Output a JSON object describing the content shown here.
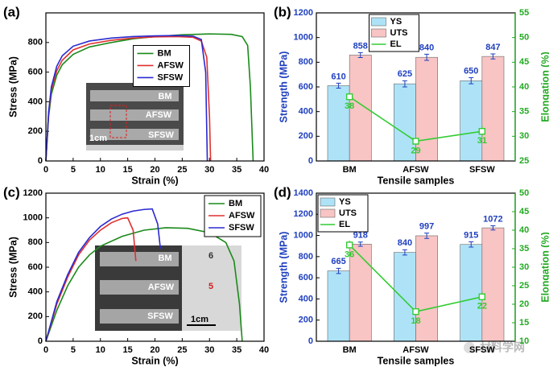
{
  "chart_data": [
    {
      "type": "line",
      "label": "(a)",
      "xlabel": "Strain (%)",
      "ylabel": "Stress (MPa)",
      "xlim": [
        0,
        40
      ],
      "xticks": [
        0,
        5,
        10,
        15,
        20,
        25,
        30,
        35,
        40
      ],
      "ylim": [
        0,
        1000
      ],
      "yticks": [
        0,
        200,
        400,
        600,
        800
      ],
      "legend": "center",
      "series": [
        {
          "name": "BM",
          "color": "#1a8a1a",
          "x": [
            0,
            0.5,
            1,
            2,
            3,
            5,
            8,
            12,
            16,
            20,
            25,
            30,
            34,
            36,
            37,
            37.5,
            38
          ],
          "values": [
            0,
            300,
            450,
            580,
            650,
            720,
            770,
            800,
            825,
            840,
            852,
            858,
            855,
            840,
            780,
            500,
            0
          ]
        },
        {
          "name": "AFSW",
          "color": "#e03030",
          "x": [
            0,
            0.5,
            1,
            2,
            3,
            5,
            8,
            12,
            16,
            20,
            24,
            27,
            28.5,
            29.5,
            30,
            30.2
          ],
          "values": [
            0,
            320,
            480,
            610,
            680,
            750,
            790,
            815,
            830,
            838,
            840,
            835,
            810,
            700,
            300,
            0
          ]
        },
        {
          "name": "SFSW",
          "color": "#2a2ad0",
          "x": [
            0,
            0.5,
            1,
            2,
            3,
            5,
            8,
            12,
            16,
            20,
            24,
            27,
            28.5,
            29.3,
            29.6
          ],
          "values": [
            0,
            330,
            500,
            640,
            710,
            775,
            810,
            830,
            840,
            845,
            847,
            843,
            820,
            600,
            0
          ]
        }
      ],
      "inset_labels": [
        "BM",
        "AFSW",
        "SFSW",
        "1cm"
      ]
    },
    {
      "type": "bar",
      "label": "(b)",
      "xlabel": "Tensile samples",
      "ylabel": "Strength (MPa)",
      "y2label": "Elongation (%)",
      "categories": [
        "BM",
        "AFSW",
        "SFSW"
      ],
      "ylim": [
        0,
        1200
      ],
      "yticks": [
        0,
        200,
        400,
        600,
        800,
        1000,
        1200
      ],
      "y2lim": [
        25,
        55
      ],
      "y2ticks": [
        25,
        30,
        35,
        40,
        45,
        50,
        55
      ],
      "legend": "upper center",
      "ycolor": "#1f3fbf",
      "y2color": "#22aa22",
      "series": [
        {
          "name": "YS",
          "color": "#aee3f7",
          "values": [
            610,
            625,
            650
          ],
          "errors": [
            20,
            25,
            25
          ]
        },
        {
          "name": "UTS",
          "color": "#f8c4c4",
          "values": [
            858,
            840,
            847
          ],
          "errors": [
            20,
            25,
            20
          ]
        },
        {
          "name": "EL",
          "color": "#33cc33",
          "axis": "y2",
          "values": [
            38,
            29,
            31
          ],
          "errors": [
            1,
            1,
            1.2
          ]
        }
      ]
    },
    {
      "type": "line",
      "label": "(c)",
      "xlabel": "Strain (%)",
      "ylabel": "Stress (MPa)",
      "xlim": [
        0,
        40
      ],
      "xticks": [
        0,
        5,
        10,
        15,
        20,
        25,
        30,
        35,
        40
      ],
      "ylim": [
        0,
        1200
      ],
      "yticks": [
        0,
        200,
        400,
        600,
        800,
        1000,
        1200
      ],
      "legend": "upper right",
      "series": [
        {
          "name": "BM",
          "color": "#1a8a1a",
          "x": [
            0,
            2,
            4,
            6,
            8,
            10,
            14,
            18,
            22,
            26,
            30,
            33,
            34.5,
            35.5,
            36
          ],
          "values": [
            0,
            250,
            450,
            600,
            700,
            770,
            850,
            900,
            920,
            915,
            880,
            800,
            650,
            300,
            0
          ]
        },
        {
          "name": "AFSW",
          "color": "#e03030",
          "x": [
            0,
            2,
            4,
            6,
            8,
            10,
            12,
            14,
            15,
            16,
            16.5
          ],
          "values": [
            0,
            300,
            520,
            700,
            820,
            900,
            960,
            995,
            1000,
            900,
            650
          ]
        },
        {
          "name": "SFSW",
          "color": "#2a2ad0",
          "x": [
            0,
            2,
            4,
            6,
            8,
            10,
            12,
            14,
            16,
            18,
            19.5,
            20.5,
            21
          ],
          "values": [
            0,
            320,
            540,
            720,
            840,
            930,
            990,
            1030,
            1055,
            1068,
            1072,
            950,
            750
          ]
        }
      ],
      "inset_labels": [
        "BM",
        "AFSW",
        "SFSW",
        "1cm",
        "6",
        "5"
      ]
    },
    {
      "type": "bar",
      "label": "(d)",
      "xlabel": "Tensile samples",
      "ylabel": "Strength (MPa)",
      "y2label": "Elongation (%)",
      "categories": [
        "BM",
        "AFSW",
        "SFSW"
      ],
      "ylim": [
        0,
        1400
      ],
      "yticks": [
        0,
        200,
        400,
        600,
        800,
        1000,
        1200,
        1400
      ],
      "y2lim": [
        10,
        50
      ],
      "y2ticks": [
        10,
        15,
        20,
        25,
        30,
        35,
        40,
        45,
        50
      ],
      "legend": "upper left",
      "ycolor": "#1f3fbf",
      "y2color": "#22aa22",
      "series": [
        {
          "name": "YS",
          "color": "#aee3f7",
          "values": [
            665,
            840,
            915
          ],
          "errors": [
            25,
            25,
            25
          ]
        },
        {
          "name": "UTS",
          "color": "#f8c4c4",
          "values": [
            918,
            997,
            1072
          ],
          "errors": [
            20,
            25,
            20
          ]
        },
        {
          "name": "EL",
          "color": "#33cc33",
          "axis": "y2",
          "values": [
            36,
            18,
            22
          ],
          "errors": [
            1.2,
            1,
            1.2
          ]
        }
      ]
    }
  ],
  "watermark": "材料学网"
}
